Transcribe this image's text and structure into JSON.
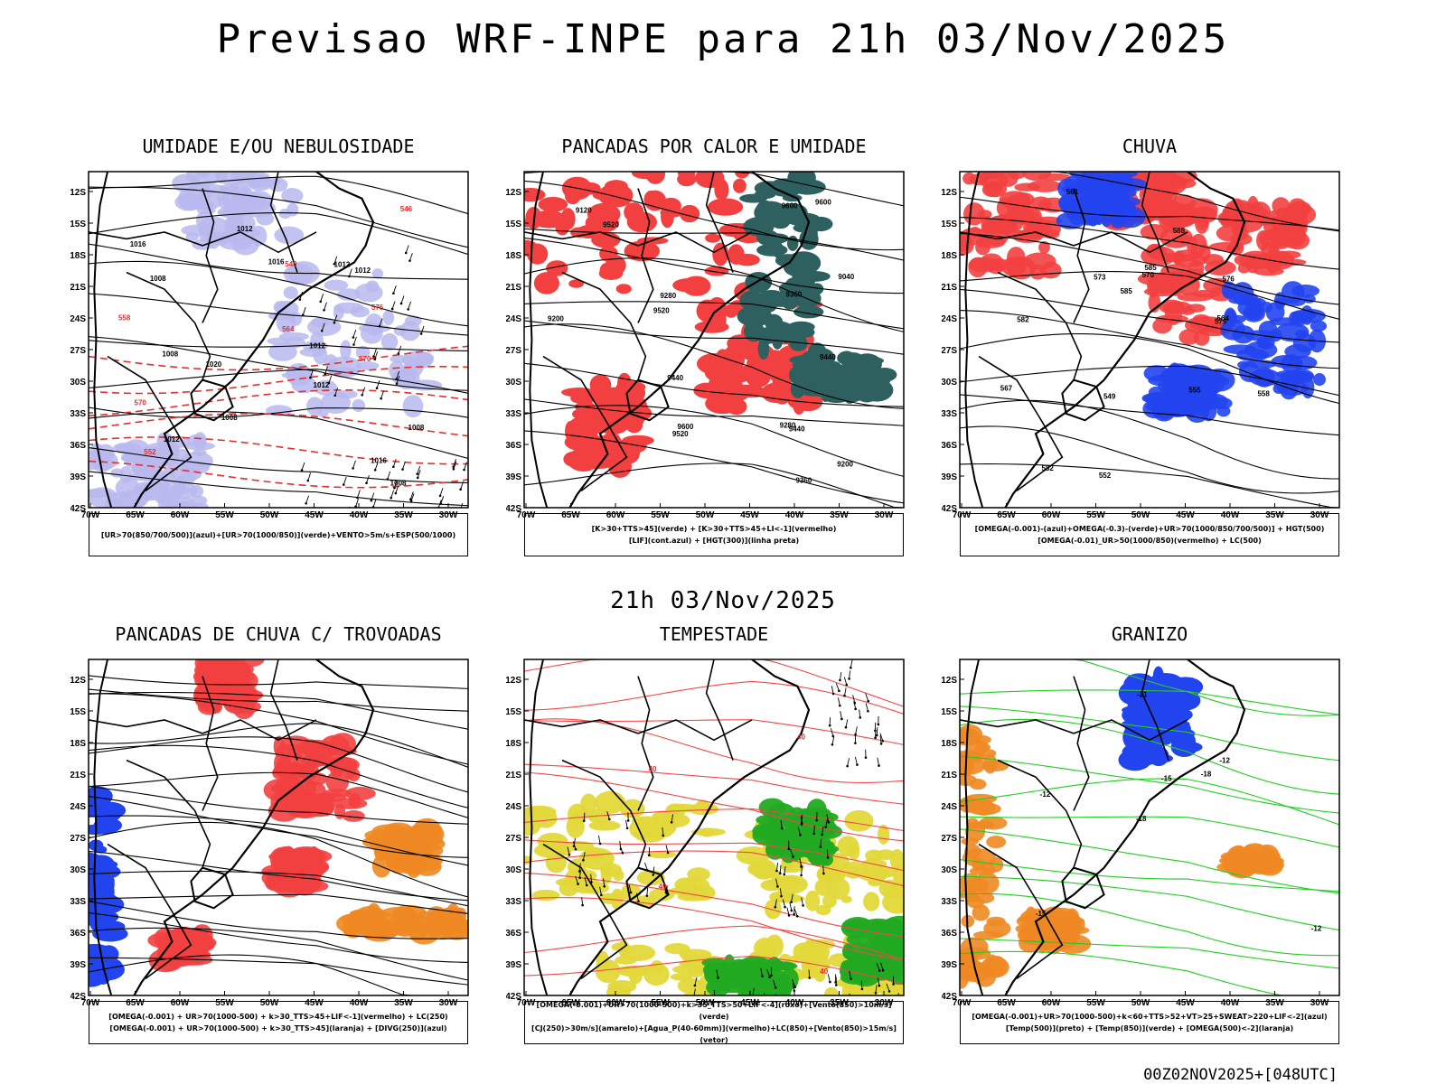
{
  "header": {
    "title": "Previsao WRF-INPE  para 21h 03/Nov/2025",
    "mid_title": "21h 03/Nov/2025",
    "footer": "00Z02NOV2025+[048UTC]"
  },
  "chart_data": [
    {
      "type": "heatmap",
      "title": "UMIDADE E/OU NEBULOSIDADE",
      "legend_lines": [
        "[UR>70(850/700/500)](azul)+[UR>70(1000/850)](verde)+VENTO>5m/s+ESP(500/1000)"
      ],
      "x_ticks": [
        "70W",
        "65W",
        "60W",
        "55W",
        "50W",
        "45W",
        "40W",
        "35W",
        "30W"
      ],
      "y_ticks": [
        "12S",
        "15S",
        "18S",
        "21S",
        "24S",
        "27S",
        "30S",
        "33S",
        "36S",
        "39S",
        "42S"
      ],
      "xlim": [
        -70,
        -28
      ],
      "ylim": [
        -42,
        -10
      ],
      "contour_labels": [
        "1008",
        "1008",
        "1012",
        "1016",
        "1008",
        "1008",
        "1012",
        "1020",
        "1012",
        "1016",
        "1012",
        "1016",
        "1008",
        "1012",
        "1012",
        "570",
        "570",
        "564",
        "558",
        "552",
        "546",
        "540",
        "576"
      ]
    },
    {
      "type": "heatmap",
      "title": "PANCADAS POR CALOR E UMIDADE",
      "legend_lines": [
        "[K>30+TTS>45](verde) + [K>30+TTS>45+LI<-1](vermelho)",
        "[LIF](cont.azul) + [HGT(300)](linha preta)"
      ],
      "x_ticks": [
        "70W",
        "65W",
        "60W",
        "55W",
        "50W",
        "45W",
        "40W",
        "35W",
        "30W"
      ],
      "y_ticks": [
        "12S",
        "15S",
        "18S",
        "21S",
        "24S",
        "27S",
        "30S",
        "33S",
        "36S",
        "39S",
        "42S"
      ],
      "xlim": [
        -70,
        -28
      ],
      "ylim": [
        -42,
        -10
      ],
      "contour_labels": [
        "9600",
        "9520",
        "9600",
        "9520",
        "9600",
        "9440",
        "9440",
        "9520",
        "9360",
        "9440",
        "9360",
        "9280",
        "9280",
        "9200",
        "9200",
        "9120",
        "9040"
      ]
    },
    {
      "type": "heatmap",
      "title": "CHUVA",
      "legend_lines": [
        "[OMEGA(-0.001)-(azul)+OMEGA(-0.3)-(verde)+UR>70(1000/850/700/500)] + HGT(500)",
        "[OMEGA(-0.01)_UR>50(1000/850)(vermelho) + LC(500)"
      ],
      "x_ticks": [
        "70W",
        "65W",
        "60W",
        "55W",
        "50W",
        "45W",
        "40W",
        "35W",
        "30W"
      ],
      "y_ticks": [
        "12S",
        "15S",
        "18S",
        "21S",
        "24S",
        "27S",
        "30S",
        "33S",
        "36S",
        "39S",
        "42S"
      ],
      "xlim": [
        -70,
        -28
      ],
      "ylim": [
        -42,
        -10
      ],
      "contour_labels": [
        "588",
        "585",
        "582",
        "579",
        "576",
        "573",
        "570",
        "567",
        "564",
        "561",
        "558",
        "555",
        "552",
        "549",
        "585",
        "582"
      ]
    },
    {
      "type": "heatmap",
      "title": "PANCADAS DE CHUVA C/ TROVOADAS",
      "legend_lines": [
        "[OMEGA(-0.001) + UR>70(1000-500) + k>30_TTS>45+LIF<-1](vermelho) + LC(250)",
        "[OMEGA(-0.001) + UR>70(1000-500) + k>30_TTS>45](laranja) + [DIVG(250)](azul)"
      ],
      "x_ticks": [
        "70W",
        "65W",
        "60W",
        "55W",
        "50W",
        "45W",
        "40W",
        "35W",
        "30W"
      ],
      "y_ticks": [
        "12S",
        "15S",
        "18S",
        "21S",
        "24S",
        "27S",
        "30S",
        "33S",
        "36S",
        "39S",
        "42S"
      ],
      "xlim": [
        -70,
        -28
      ],
      "ylim": [
        -42,
        -10
      ],
      "contour_labels": []
    },
    {
      "type": "heatmap",
      "title": "TEMPESTADE",
      "legend_lines": [
        "[OMEGA(-0.001)+UR>70(1000-500)+k>35_TTS>50+LIF<-4](roxo)+[Vento(850)>10m/s](verde)",
        "[CJ(250)>30m/s](amarelo)+[Agua_P(40-60mm)](vermelho)+LC(850)+[Vento(850)>15m/s](vetor)"
      ],
      "x_ticks": [
        "70W",
        "65W",
        "60W",
        "55W",
        "50W",
        "45W",
        "40W",
        "35W",
        "30W"
      ],
      "y_ticks": [
        "12S",
        "15S",
        "18S",
        "21S",
        "24S",
        "27S",
        "30S",
        "33S",
        "36S",
        "39S",
        "42S"
      ],
      "xlim": [
        -70,
        -28
      ],
      "ylim": [
        -42,
        -10
      ],
      "contour_labels": [
        "40",
        "40",
        "40",
        "40"
      ]
    },
    {
      "type": "heatmap",
      "title": "GRANIZO",
      "legend_lines": [
        "[OMEGA(-0.001)+UR>70(1000-500)+k<60+TTS>52+VT>25+SWEAT>220+LIF<-2](azul)",
        "[Temp(500)](preto) + [Temp(850)](verde) + [OMEGA(500)<-2](laranja)"
      ],
      "x_ticks": [
        "70W",
        "65W",
        "60W",
        "55W",
        "50W",
        "45W",
        "40W",
        "35W",
        "30W"
      ],
      "y_ticks": [
        "12S",
        "15S",
        "18S",
        "21S",
        "24S",
        "27S",
        "30S",
        "33S",
        "36S",
        "39S",
        "42S"
      ],
      "xlim": [
        -70,
        -28
      ],
      "ylim": [
        -42,
        -10
      ],
      "contour_labels": [
        "-12",
        "-12",
        "-15",
        "-18",
        "-21",
        "-15",
        "-18",
        "-12"
      ]
    }
  ]
}
